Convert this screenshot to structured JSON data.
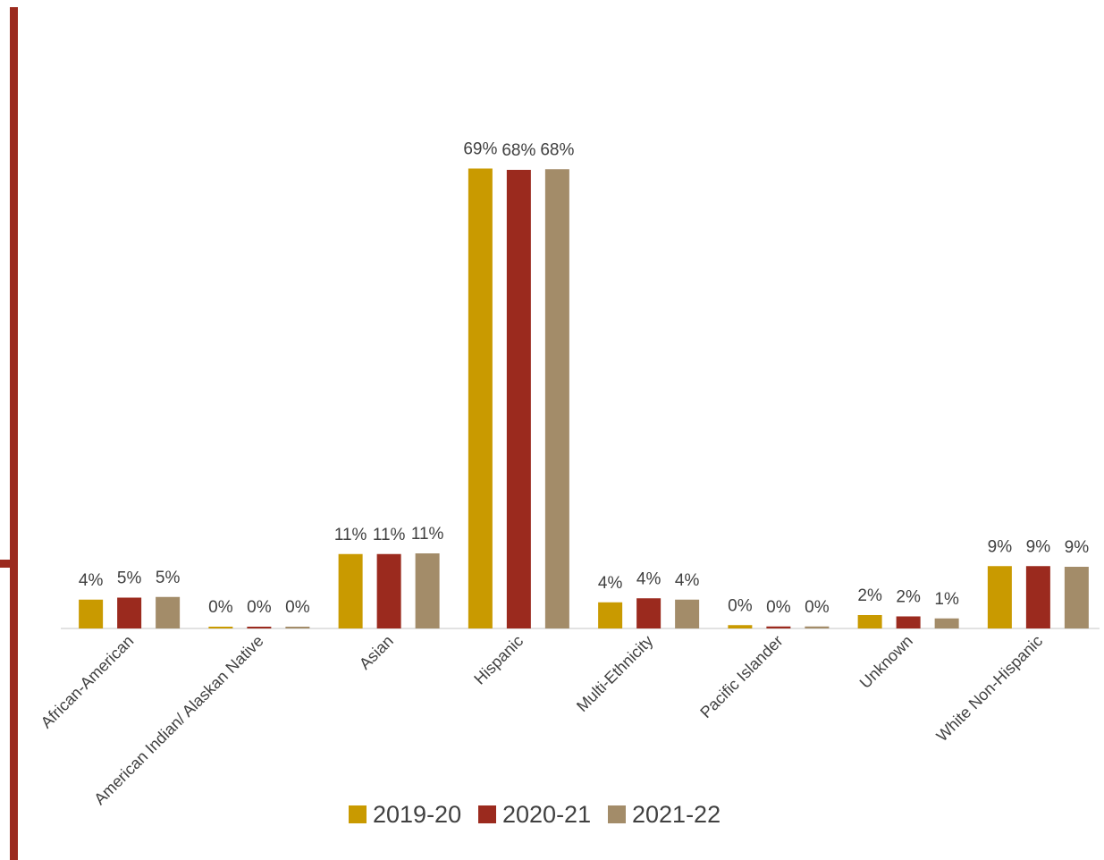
{
  "chart_data": {
    "type": "bar",
    "categories": [
      "African-American",
      "American Indian/ Alaskan Native",
      "Asian",
      "Hispanic",
      "Multi-Ethnicity",
      "Pacific Islander",
      "Unknown",
      "White Non-Hispanic"
    ],
    "series": [
      {
        "name": "2019-20",
        "color": "#C99A00",
        "values": [
          4.3,
          0.2,
          11.1,
          68.6,
          3.9,
          0.5,
          2.0,
          9.3
        ],
        "labels": [
          "4%",
          "0%",
          "11%",
          "69%",
          "4%",
          "0%",
          "2%",
          "9%"
        ]
      },
      {
        "name": "2020-21",
        "color": "#9B2A1E",
        "values": [
          4.6,
          0.2,
          11.1,
          68.4,
          4.5,
          0.3,
          1.8,
          9.3
        ],
        "labels": [
          "5%",
          "0%",
          "11%",
          "68%",
          "4%",
          "0%",
          "2%",
          "9%"
        ]
      },
      {
        "name": "2021-22",
        "color": "#A38C69",
        "values": [
          4.7,
          0.2,
          11.2,
          68.5,
          4.3,
          0.3,
          1.5,
          9.2
        ],
        "labels": [
          "5%",
          "0%",
          "11%",
          "68%",
          "4%",
          "0%",
          "1%",
          "9%"
        ]
      }
    ],
    "ylim": [
      0,
      90
    ],
    "legend_position": "bottom",
    "data_labels": true,
    "grid": false,
    "accent_color": "#9B2A1E"
  }
}
